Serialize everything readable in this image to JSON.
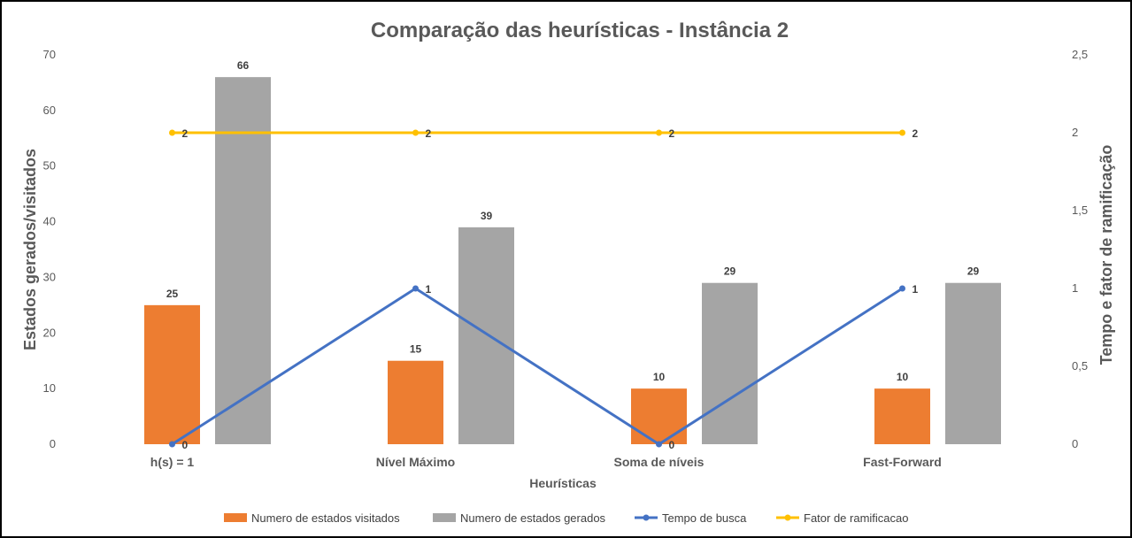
{
  "chart_data": {
    "type": "bar",
    "title": "Comparação das heurísticas - Instância 2",
    "xlabel": "Heurísticas",
    "ylabel": "Estados  gerados/visitados",
    "y2label": "Tempo e fator de ramificação",
    "categories": [
      "h(s) = 1",
      "Nível Máximo",
      "Soma de níveis",
      "Fast-Forward"
    ],
    "ylim": [
      0,
      70
    ],
    "y2lim": [
      0,
      2.5
    ],
    "yticks": [
      "0",
      "10",
      "20",
      "30",
      "40",
      "50",
      "60",
      "70"
    ],
    "y2ticks": [
      "0",
      "0,5",
      "1",
      "1,5",
      "2",
      "2,5"
    ],
    "grid": false,
    "legend_position": "bottom",
    "series": [
      {
        "name": "Numero de estados visitados",
        "type": "bar",
        "axis": "left",
        "color": "#ED7D31",
        "values": [
          25,
          15,
          10,
          10
        ]
      },
      {
        "name": "Numero de estados gerados",
        "type": "bar",
        "axis": "left",
        "color": "#A5A5A5",
        "values": [
          66,
          39,
          29,
          29
        ]
      },
      {
        "name": "Tempo de busca",
        "type": "line",
        "axis": "right",
        "color": "#4472C4",
        "values": [
          0,
          1,
          0,
          1
        ]
      },
      {
        "name": "Fator de ramificacao",
        "type": "line",
        "axis": "right",
        "color": "#FFC000",
        "values": [
          2,
          2,
          2,
          2
        ]
      }
    ]
  }
}
